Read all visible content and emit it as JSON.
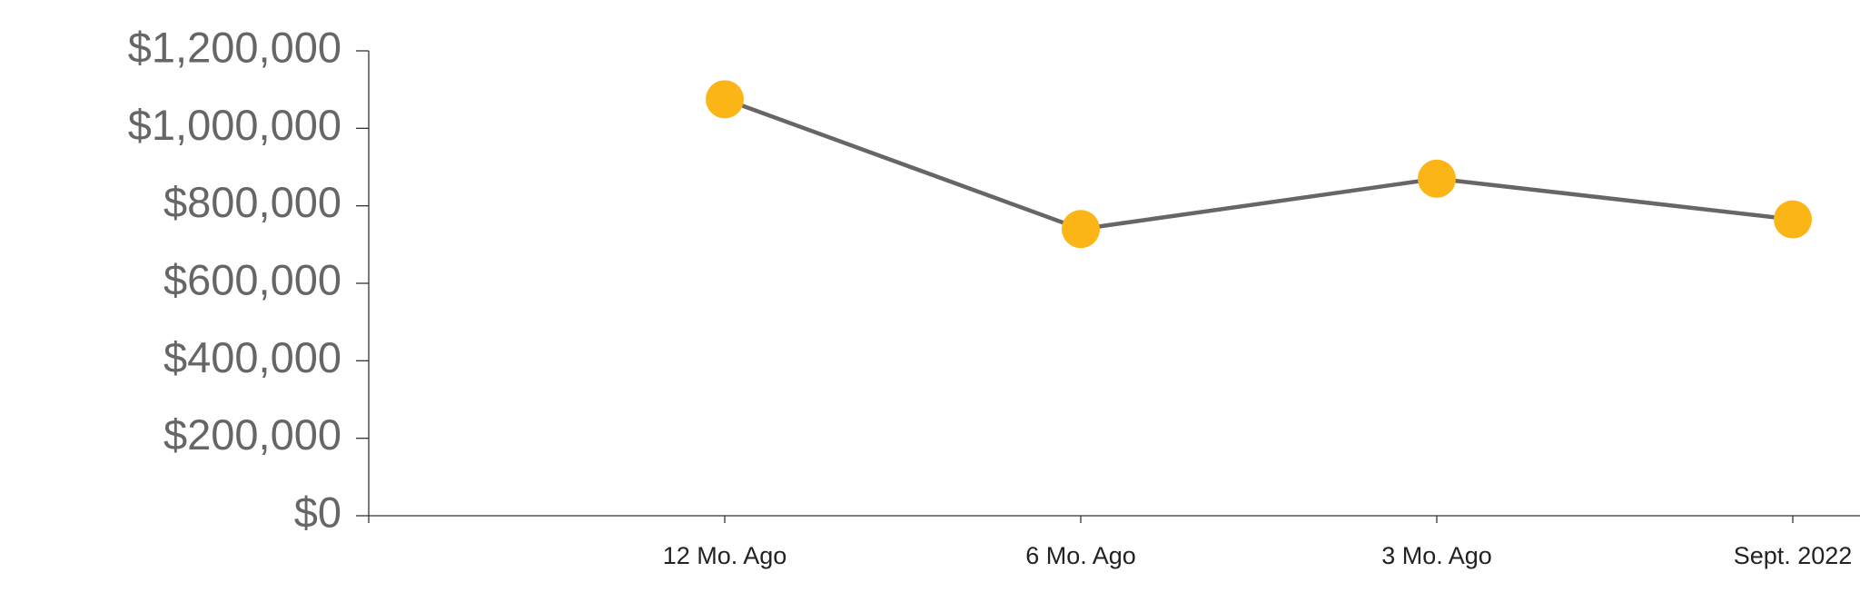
{
  "chart_data": {
    "type": "line",
    "categories": [
      null,
      "12 Mo. Ago",
      "6 Mo. Ago",
      "3 Mo. Ago",
      "Sept. 2022"
    ],
    "values": [
      null,
      1075000,
      740000,
      870000,
      765000
    ],
    "line_color": "#666666",
    "marker_color": "#fbb517",
    "ylim": [
      0,
      1200000
    ],
    "yticks": [
      {
        "value": 0,
        "label": "$0"
      },
      {
        "value": 200000,
        "label": "$200,000"
      },
      {
        "value": 400000,
        "label": "$400,000"
      },
      {
        "value": 600000,
        "label": "$600,000"
      },
      {
        "value": 800000,
        "label": "$800,000"
      },
      {
        "value": 1000000,
        "label": "$1,000,000"
      },
      {
        "value": 1200000,
        "label": "$1,200,000"
      }
    ],
    "grid": false
  }
}
